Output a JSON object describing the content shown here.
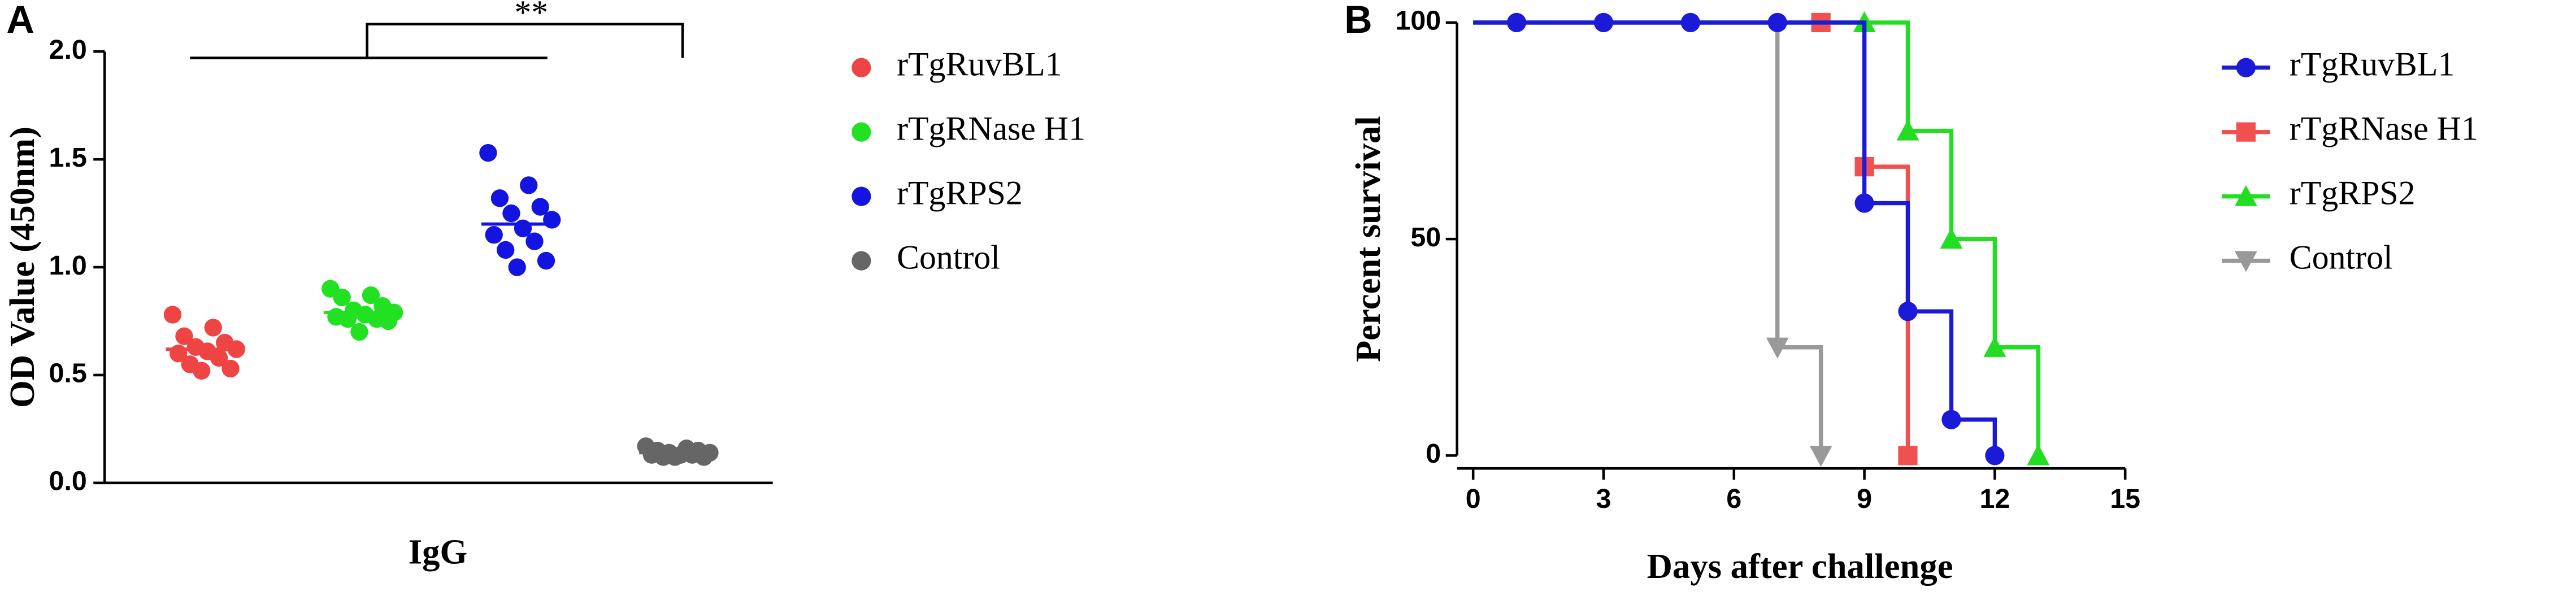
{
  "chart_data": [
    {
      "panel": "A",
      "type": "dot",
      "ylabel": "OD Value (450nm)",
      "xlabel": "IgG",
      "annotation": "**",
      "ylim": [
        0,
        2
      ],
      "yticks": [
        {
          "value": 0,
          "label": "0.0"
        },
        {
          "value": 0.5,
          "label": "0.5"
        },
        {
          "value": 1,
          "label": "1.0"
        },
        {
          "value": 1.5,
          "label": "1.5"
        },
        {
          "value": 2,
          "label": "2.0"
        }
      ],
      "series": [
        {
          "name": "rTgRuvBL1",
          "color": "#ef4444",
          "mean": 0.62,
          "values": [
            0.78,
            0.72,
            0.68,
            0.65,
            0.63,
            0.62,
            0.61,
            0.6,
            0.58,
            0.55,
            0.53,
            0.52
          ]
        },
        {
          "name": "rTgRNase H1",
          "color": "#22e022",
          "mean": 0.79,
          "values": [
            0.9,
            0.87,
            0.86,
            0.82,
            0.8,
            0.79,
            0.78,
            0.77,
            0.76,
            0.76,
            0.75,
            0.7
          ]
        },
        {
          "name": "rTgRPS2",
          "color": "#1414e0",
          "mean": 1.2,
          "values": [
            1.53,
            1.38,
            1.32,
            1.28,
            1.25,
            1.22,
            1.18,
            1.15,
            1.12,
            1.08,
            1.03,
            1.0
          ]
        },
        {
          "name": "Control",
          "color": "#666666",
          "mean": 0.14,
          "values": [
            0.17,
            0.16,
            0.15,
            0.15,
            0.14,
            0.14,
            0.13,
            0.13,
            0.13,
            0.12,
            0.12,
            0.12
          ]
        }
      ]
    },
    {
      "panel": "B",
      "type": "step",
      "xlabel": "Days after challenge",
      "ylabel": "Percent survival",
      "xlim": [
        0,
        15
      ],
      "xticks": [
        0,
        3,
        6,
        9,
        12,
        15
      ],
      "ylim": [
        0,
        100
      ],
      "yticks": [
        0,
        50,
        100
      ],
      "series": [
        {
          "name": "rTgRuvBL1",
          "color": "#1a1ad8",
          "marker": "circle",
          "x": [
            1,
            3,
            5,
            7,
            9,
            10,
            11,
            12
          ],
          "values": [
            100,
            100,
            100,
            100,
            58.3,
            33.3,
            8.3,
            0
          ]
        },
        {
          "name": "rTgRNase H1",
          "color": "#f05050",
          "marker": "square",
          "x": [
            8,
            9,
            10
          ],
          "values": [
            100,
            66.7,
            0
          ]
        },
        {
          "name": "rTgRPS2",
          "color": "#22dd22",
          "marker": "triangle-up",
          "x": [
            9,
            10,
            11,
            12,
            13
          ],
          "values": [
            100,
            75,
            50,
            25,
            0
          ]
        },
        {
          "name": "Control",
          "color": "#999999",
          "marker": "triangle-down",
          "x": [
            7,
            8
          ],
          "values": [
            25,
            0
          ]
        }
      ]
    }
  ]
}
